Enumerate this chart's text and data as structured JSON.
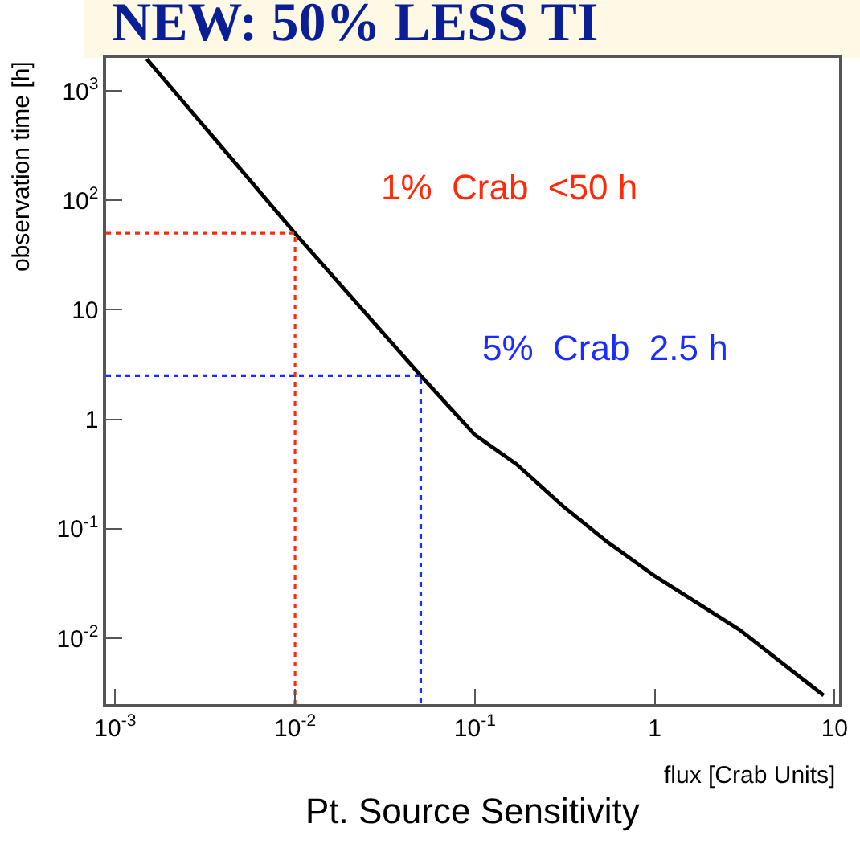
{
  "chart_data": {
    "type": "line",
    "title": "NEW: 50% LESS TI",
    "xlabel": "flux [Crab Units]",
    "ylabel": "observation time [h]",
    "log": "xy",
    "marker": "none",
    "xlim": [
      0.00089,
      10.6
    ],
    "ylim": [
      0.0025,
      2000
    ],
    "xticks": [
      {
        "value": 0.001,
        "label": "10$^{-3}$"
      },
      {
        "value": 0.01,
        "label": "10$^{-2}$"
      },
      {
        "value": 0.1,
        "label": "10$^{-1}$"
      },
      1,
      10
    ],
    "yticks": [
      {
        "value": 0.01,
        "label": "10$^{-2}$"
      },
      {
        "value": 0.1,
        "label": "10$^{-1}$"
      },
      1,
      10,
      {
        "value": 100,
        "label": "10$^{2}$"
      },
      {
        "value": 1000,
        "label": "10$^{3}$"
      }
    ],
    "series": [
      {
        "color": "#000000",
        "line_style": "solid",
        "x": [
          0.0015,
          0.01,
          0.05,
          0.1,
          0.17,
          0.31,
          0.55,
          1,
          2.95,
          8.7
        ],
        "values": [
          1950,
          50,
          2.5,
          0.72,
          0.39,
          0.16,
          0.075,
          0.037,
          0.012,
          0.003
        ]
      },
      {
        "color": "#ff2a0a",
        "line_style": "dotted",
        "x": [
          0.00089,
          0.01,
          0.01
        ],
        "values": [
          50,
          50,
          0.0025
        ]
      },
      {
        "color": "#1a2cff",
        "line_style": "dotted",
        "x": [
          0.00089,
          0.05,
          0.05
        ],
        "values": [
          2.5,
          2.5,
          0.0025
        ]
      }
    ],
    "annotations": [
      "1%  Crab  <50 h",
      "5%  Crab  2.5 h",
      "Pt. Source Sensitivity"
    ]
  }
}
